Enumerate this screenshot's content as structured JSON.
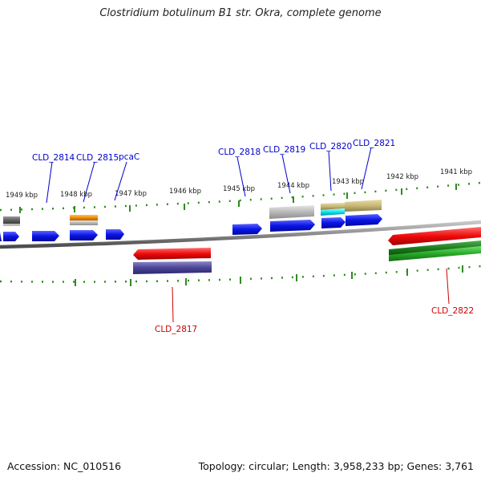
{
  "title": "Clostridium botulinum B1 str. Okra, complete genome",
  "footer": {
    "accession": "Accession: NC_010516",
    "summary": "Topology: circular; Length: 3,958,233 bp; Genes: 3,761"
  },
  "colors": {
    "backbone": "#8a8a8a",
    "tick": "#2e8b1e",
    "gene_forward": "#0a14e6",
    "gene_reverse_red": "#ee0a0a",
    "gene_reverse_purple": "#4b4596",
    "gene_green": "#27a827",
    "label_forward": "#0000cc",
    "label_reverse": "#cc0000"
  },
  "scale_labels": [
    "1949 kbp",
    "1948 kbp",
    "1947 kbp",
    "1946 kbp",
    "1945 kbp",
    "1944 kbp",
    "1943 kbp",
    "1942 kbp",
    "1941 kbp"
  ],
  "gene_labels": {
    "forward": [
      "CLD_2814",
      "CLD_2815",
      "pcaC",
      "CLD_2818",
      "CLD_2819",
      "CLD_2820",
      "CLD_2821"
    ],
    "reverse": [
      "CLD_2817",
      "CLD_2822"
    ]
  }
}
